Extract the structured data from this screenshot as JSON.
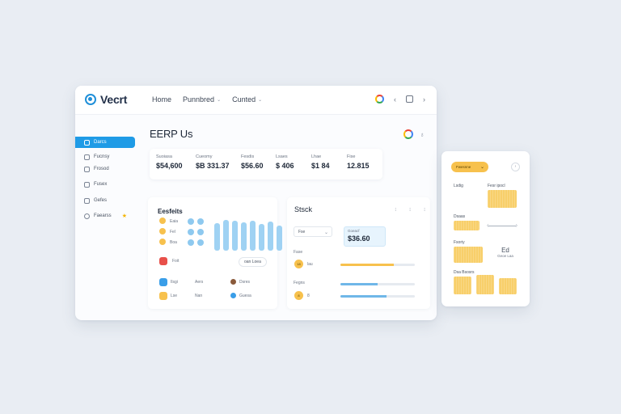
{
  "app": {
    "name": "Vecrt"
  },
  "nav": {
    "items": [
      {
        "label": "Home"
      },
      {
        "label": "Punnbred",
        "caret": "⌄"
      },
      {
        "label": "Cunted",
        "caret": "⌄"
      }
    ]
  },
  "topbar_icons": {
    "back": "‹",
    "menu": "›"
  },
  "sidebar": {
    "items": [
      {
        "label": "Darcs",
        "active": true
      },
      {
        "label": "Fucnsy"
      },
      {
        "label": "Frosod"
      },
      {
        "label": "Fusex"
      },
      {
        "label": "Gefes"
      },
      {
        "label": "Faearss",
        "star": "★"
      }
    ]
  },
  "page": {
    "title": "EERP Us",
    "secondary_icon": "♁"
  },
  "kpis": [
    {
      "label": "Suoiasa",
      "value": "$54,600"
    },
    {
      "label": "Cueomy",
      "value": "$B 331.37"
    },
    {
      "label": "Fesdis",
      "value": "$56.60"
    },
    {
      "label": "Lsaes",
      "value": "$ 406"
    },
    {
      "label": "Lhae",
      "value": "$1 84"
    },
    {
      "label": "Fise",
      "value": "12.815"
    }
  ],
  "panel_a": {
    "title": "Eesfeits",
    "legend": [
      {
        "label": "Eaia"
      },
      {
        "label": "Fel"
      },
      {
        "label": "Boa"
      }
    ],
    "bars": [
      0.78,
      0.86,
      0.84,
      0.8,
      0.84,
      0.76,
      0.82,
      0.7
    ],
    "row1": {
      "label": "Foit",
      "button": "oan Loea"
    },
    "row2": [
      {
        "label": "Ilsgi"
      },
      {
        "label": "Aers"
      },
      {
        "label": "Dsres"
      }
    ],
    "row3": [
      {
        "label": "Lse"
      },
      {
        "label": "Nan"
      },
      {
        "label": "Guesa"
      }
    ]
  },
  "panel_b": {
    "title": "Stsck",
    "icons": [
      "⁝",
      "⁝",
      "⁝"
    ],
    "select": {
      "value": "Fse",
      "caret": "⌄"
    },
    "value_box": {
      "label": "Goeacf",
      "value": "$36.60"
    },
    "section1": "Fase",
    "row1": {
      "badge": "18",
      "label": "lau",
      "progress": 0.72
    },
    "section2": "Fegns",
    "row2a": {
      "progress": 0.5
    },
    "row2b": {
      "badge": "8",
      "label": "8",
      "progress": 0.62
    }
  },
  "side_card": {
    "pill": {
      "label": "Fwesnne",
      "caret": "⌄"
    },
    "circle": "›",
    "labels": {
      "a": "Lsdig",
      "b": "Fesr ipocl",
      "c": "Dsaas",
      "d": "Fsoriy",
      "e": "Dsa Bsosrs"
    },
    "note": {
      "big": "Ed",
      "small": "Geoe Laa"
    }
  },
  "colors": {
    "accent": "#1f9be6",
    "yellow": "#f7c14d",
    "bar": "#9fd2f3"
  }
}
